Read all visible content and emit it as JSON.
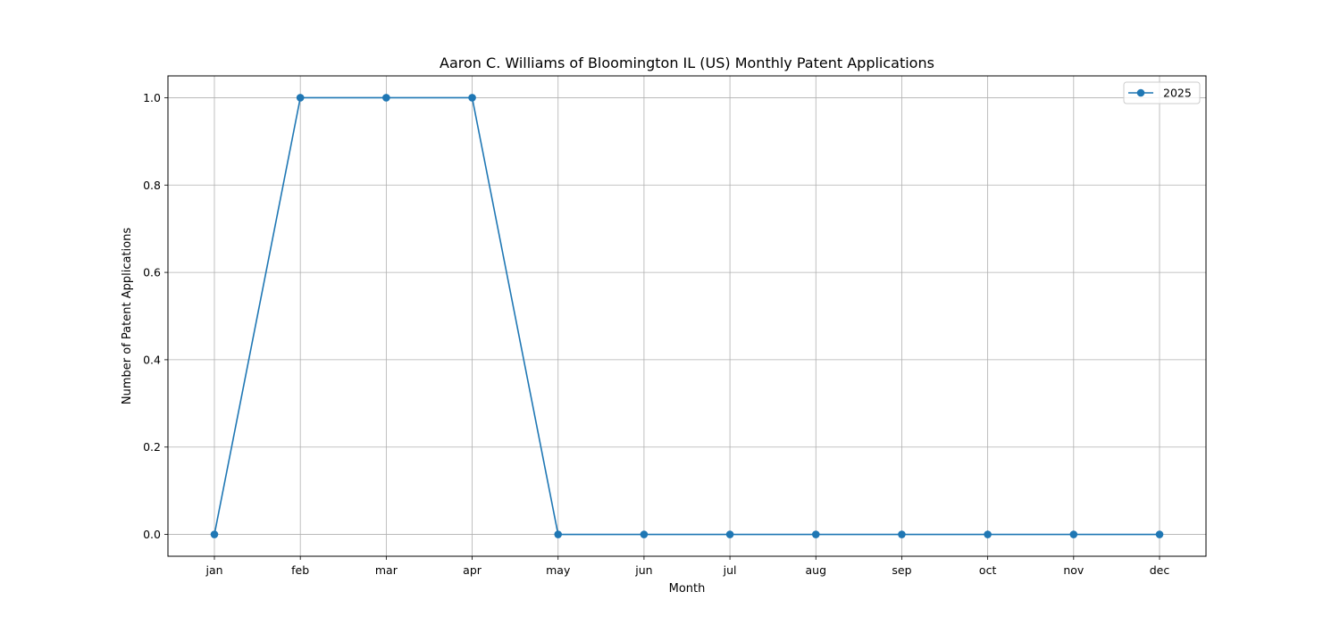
{
  "chart_data": {
    "type": "line",
    "title": "Aaron C. Williams of Bloomington IL (US) Monthly Patent Applications",
    "xlabel": "Month",
    "ylabel": "Number of Patent Applications",
    "categories": [
      "jan",
      "feb",
      "mar",
      "apr",
      "may",
      "jun",
      "jul",
      "aug",
      "sep",
      "oct",
      "nov",
      "dec"
    ],
    "series": [
      {
        "name": "2025",
        "values": [
          0,
          1,
          1,
          1,
          0,
          0,
          0,
          0,
          0,
          0,
          0,
          0
        ],
        "color": "#1f77b4"
      }
    ],
    "ylim": [
      -0.05,
      1.05
    ],
    "yticks": [
      "0.0",
      "0.2",
      "0.4",
      "0.6",
      "0.8",
      "1.0"
    ],
    "grid": true,
    "legend": "top-right"
  }
}
